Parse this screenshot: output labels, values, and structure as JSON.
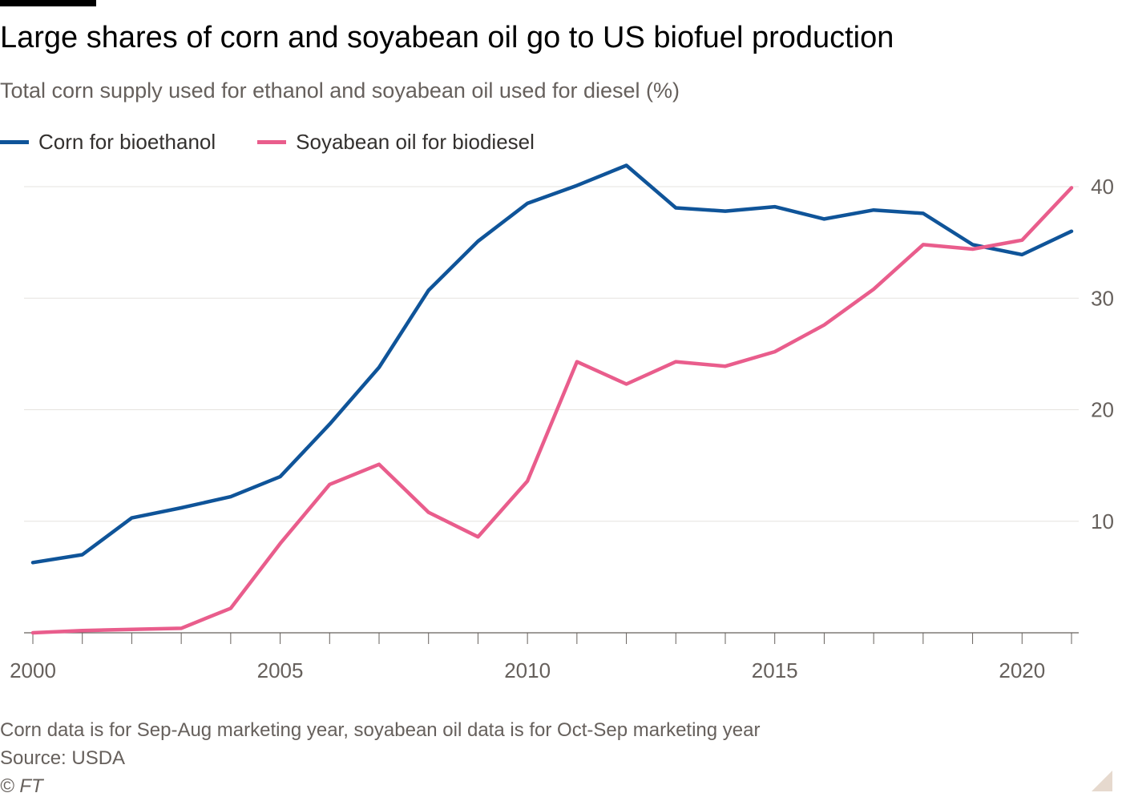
{
  "header": {
    "title": "Large shares of corn and soyabean oil go to US biofuel production",
    "subtitle": "Total corn supply used for ethanol and soyabean oil used for diesel (%)"
  },
  "legend": [
    {
      "label": "Corn for bioethanol",
      "color": "#0f5499"
    },
    {
      "label": "Soyabean oil for biodiesel",
      "color": "#e95d8c"
    }
  ],
  "footer": {
    "note": "Corn data is for Sep-Aug marketing year, soyabean oil data is for Oct-Sep marketing year",
    "source": "Source: USDA",
    "copyright": "© FT"
  },
  "chart_data": {
    "type": "line",
    "x": [
      2000,
      2001,
      2002,
      2003,
      2004,
      2005,
      2006,
      2007,
      2008,
      2009,
      2010,
      2011,
      2012,
      2013,
      2014,
      2015,
      2016,
      2017,
      2018,
      2019,
      2020,
      2021
    ],
    "xlim": [
      2000,
      2021
    ],
    "ylim": [
      0,
      40
    ],
    "x_ticks": [
      2000,
      2005,
      2010,
      2015,
      2020
    ],
    "y_ticks": [
      10,
      20,
      30,
      40
    ],
    "y_axis_side": "right",
    "grid": "horizontal",
    "legend_position": "top-left",
    "series": [
      {
        "name": "Corn for bioethanol",
        "color": "#0f5499",
        "values": [
          6.3,
          7.0,
          10.3,
          11.2,
          12.2,
          14.0,
          18.7,
          23.8,
          30.7,
          35.1,
          38.5,
          40.1,
          41.9,
          38.1,
          37.8,
          38.2,
          37.1,
          37.9,
          37.6,
          34.8,
          33.9,
          36.0
        ]
      },
      {
        "name": "Soyabean oil for biodiesel",
        "color": "#e95d8c",
        "values": [
          0.0,
          0.2,
          0.3,
          0.4,
          2.2,
          8.0,
          13.3,
          15.1,
          10.8,
          8.6,
          13.6,
          24.3,
          22.3,
          24.3,
          23.9,
          25.2,
          27.6,
          30.8,
          34.8,
          34.4,
          35.2,
          39.9
        ]
      }
    ]
  }
}
